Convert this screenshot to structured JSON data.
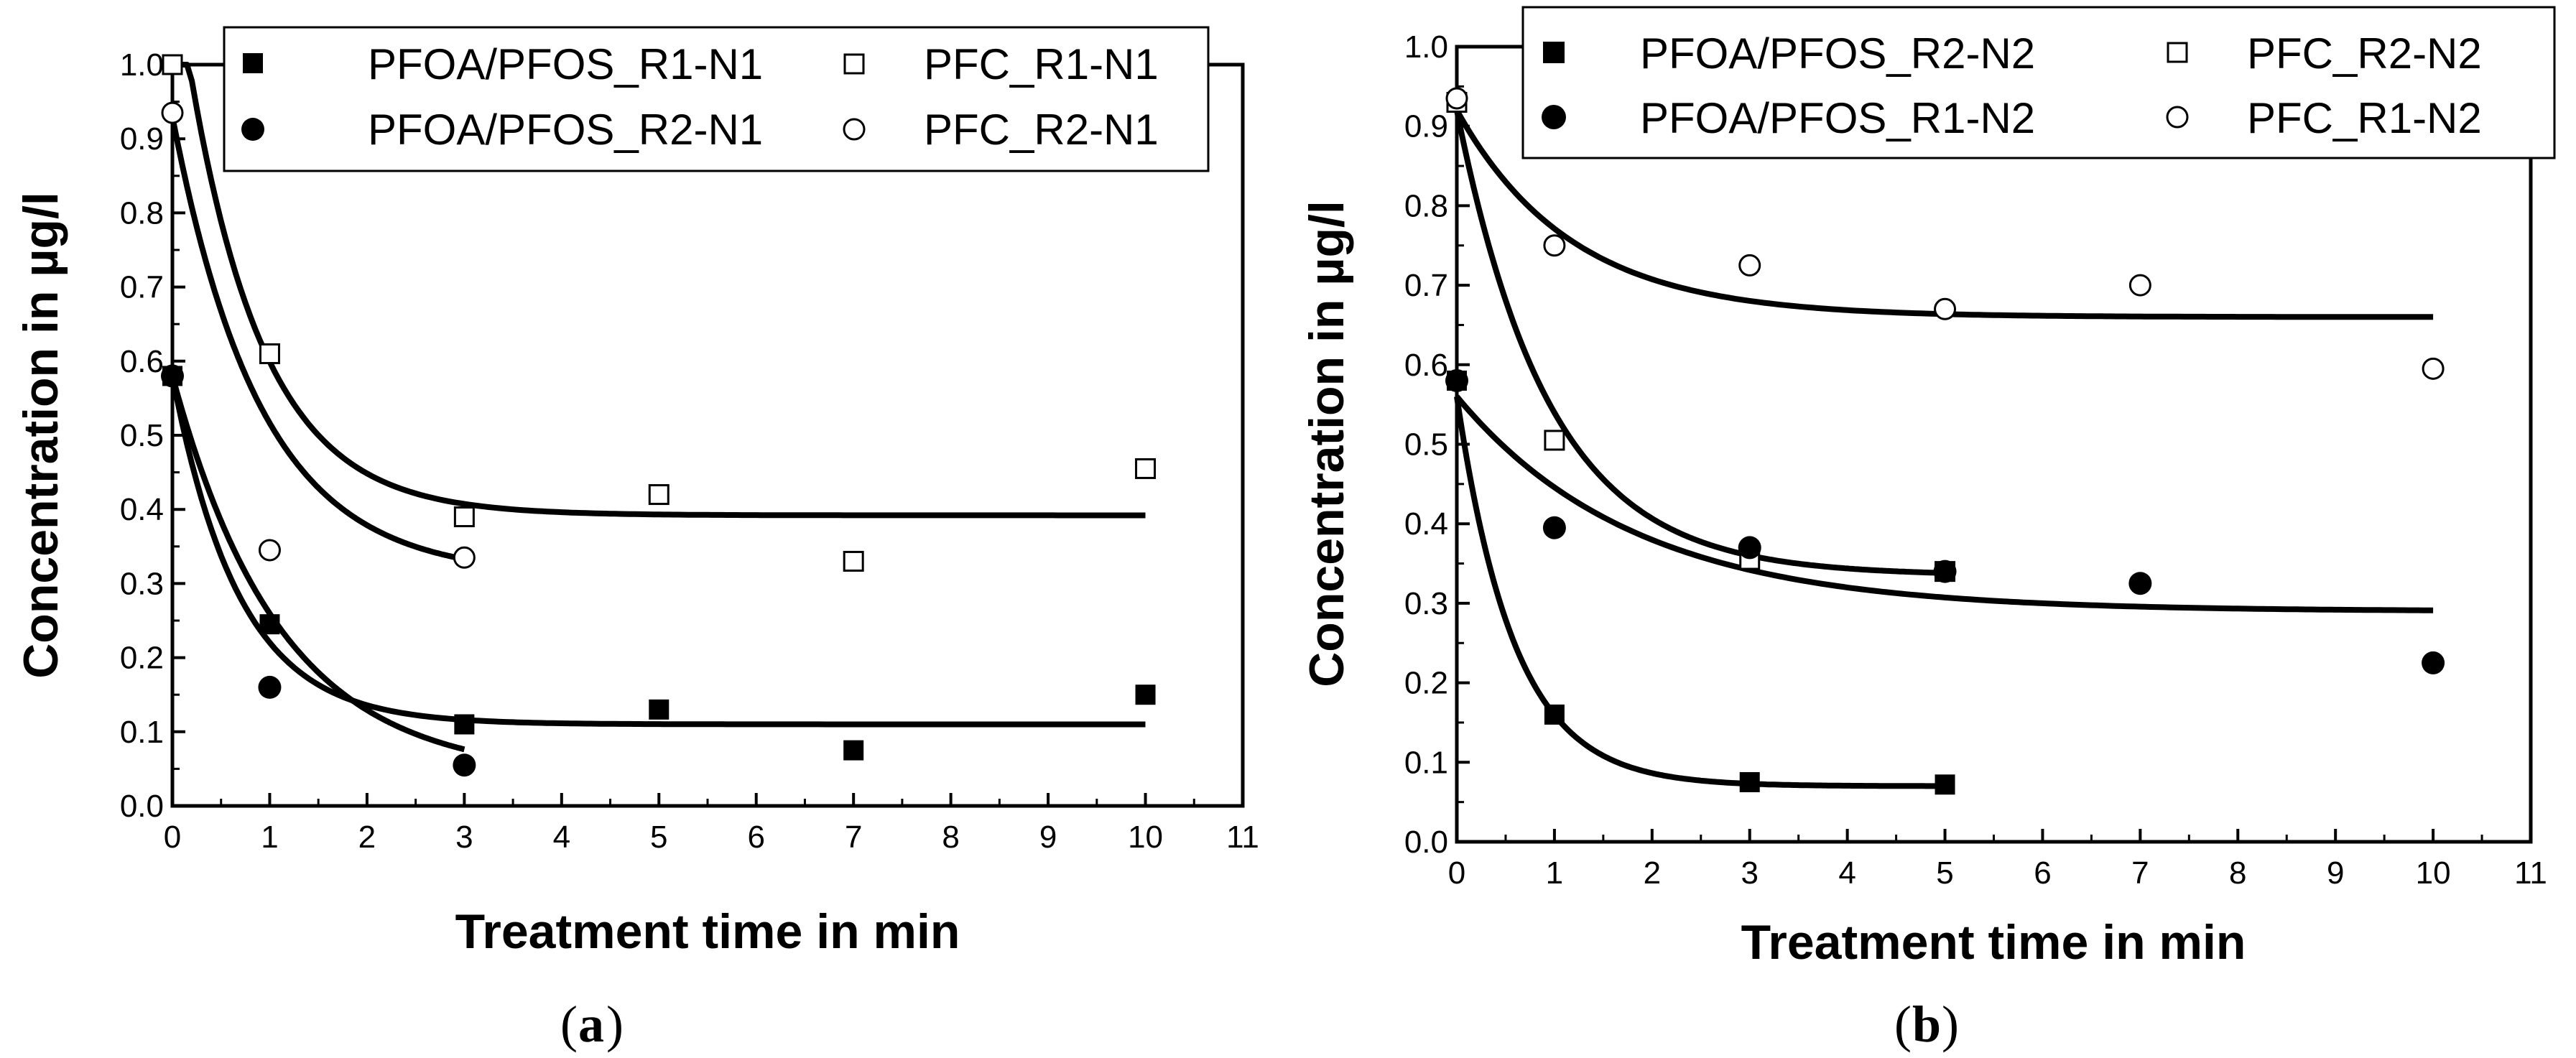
{
  "chart_data": [
    {
      "type": "scatter",
      "caption_letter": "a",
      "xlabel": "Treatment time in min",
      "ylabel": "Concentration in µg/l",
      "xlim": [
        0,
        11
      ],
      "ylim": [
        0,
        1.0
      ],
      "xticks": [
        "0",
        "1",
        "2",
        "3",
        "4",
        "5",
        "6",
        "7",
        "8",
        "9",
        "10",
        "11"
      ],
      "yticks": [
        "0.0",
        "0.1",
        "0.2",
        "0.3",
        "0.4",
        "0.5",
        "0.6",
        "0.7",
        "0.8",
        "0.9",
        "1.0"
      ],
      "legend_position": "top-right",
      "series": [
        {
          "name": "PFOA/PFOS_R1-N1",
          "marker": "filled-square",
          "x": [
            0,
            1,
            3,
            5,
            7,
            10
          ],
          "y": [
            0.58,
            0.245,
            0.11,
            0.13,
            0.075,
            0.15
          ],
          "fit": {
            "x_end": 10,
            "c": 0.11,
            "a": 0.47,
            "k": 1.45
          }
        },
        {
          "name": "PFOA/PFOS_R2-N1",
          "marker": "filled-circle",
          "x": [
            0,
            1,
            3
          ],
          "y": [
            0.58,
            0.16,
            0.055
          ],
          "fit": {
            "x_end": 3,
            "c": 0.04,
            "a": 0.54,
            "k": 0.9
          }
        },
        {
          "name": "PFC_R1-N1",
          "marker": "open-square",
          "x": [
            0,
            1,
            3,
            5,
            7,
            10
          ],
          "y": [
            1.0,
            0.61,
            0.39,
            0.42,
            0.33,
            0.455
          ],
          "fit": {
            "x_end": 10,
            "c": 0.392,
            "a": 0.76,
            "k": 1.3
          }
        },
        {
          "name": "PFC_R2-N1",
          "marker": "open-circle",
          "x": [
            0,
            1,
            3
          ],
          "y": [
            0.935,
            0.345,
            0.335
          ],
          "fit": {
            "x_end": 3,
            "c": 0.31,
            "a": 0.62,
            "k": 1.1
          }
        }
      ]
    },
    {
      "type": "scatter",
      "caption_letter": "b",
      "xlabel": "Treatment time in min",
      "ylabel": "Concentration in µg/l",
      "xlim": [
        0,
        11
      ],
      "ylim": [
        0,
        1.0
      ],
      "xticks": [
        "0",
        "1",
        "2",
        "3",
        "4",
        "5",
        "6",
        "7",
        "8",
        "9",
        "10",
        "11"
      ],
      "yticks": [
        "0.0",
        "0.1",
        "0.2",
        "0.3",
        "0.4",
        "0.5",
        "0.6",
        "0.7",
        "0.8",
        "0.9",
        "1.0"
      ],
      "legend_position": "top-right",
      "series": [
        {
          "name": "PFOA/PFOS_R2-N2",
          "marker": "filled-square",
          "x": [
            0,
            1,
            3,
            5
          ],
          "y": [
            0.58,
            0.16,
            0.075,
            0.072
          ],
          "fit": {
            "x_end": 5,
            "c": 0.07,
            "a": 0.49,
            "k": 1.7
          }
        },
        {
          "name": "PFC_R2-N2",
          "marker": "open-square",
          "x": [
            0,
            1,
            3,
            5
          ],
          "y": [
            0.93,
            0.505,
            0.355,
            0.34
          ],
          "fit": {
            "x_end": 5,
            "c": 0.335,
            "a": 0.585,
            "k": 1.05
          }
        },
        {
          "name": "PFOA/PFOS_R1-N2",
          "marker": "filled-circle",
          "x": [
            0,
            1,
            3,
            5,
            7,
            10
          ],
          "y": [
            0.58,
            0.395,
            0.37,
            0.34,
            0.325,
            0.225
          ],
          "fit": {
            "x_end": 10,
            "c": 0.29,
            "a": 0.27,
            "k": 0.55
          }
        },
        {
          "name": "PFC_R1-N2",
          "marker": "open-circle",
          "x": [
            0,
            1,
            3,
            5,
            7,
            10
          ],
          "y": [
            0.935,
            0.75,
            0.725,
            0.67,
            0.7,
            0.595
          ],
          "fit": {
            "x_end": 10,
            "c": 0.66,
            "a": 0.26,
            "k": 0.85
          }
        }
      ]
    }
  ]
}
